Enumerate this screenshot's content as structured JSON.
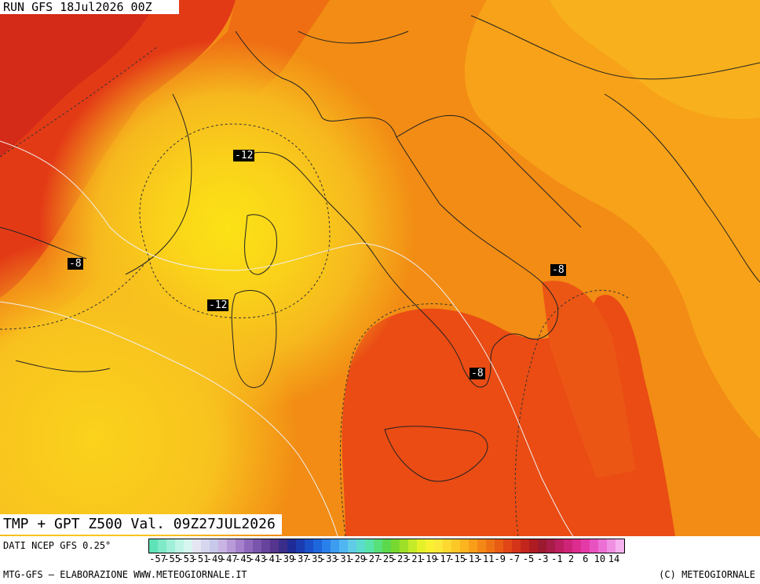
{
  "header": {
    "run_label": "RUN GFS 18Jul2026 00Z"
  },
  "footer": {
    "valid_label": "TMP + GPT Z500 Val. 09Z27JUL2026",
    "source": "DATI NCEP GFS 0.25°",
    "credit_left": "MTG-GFS — ELABORAZIONE WWW.METEOGIORNALE.IT",
    "credit_right": "(C) METEOGIORNALE"
  },
  "isotherm_labels": [
    {
      "text": "-12"
    },
    {
      "text": "-8"
    },
    {
      "text": "-12"
    },
    {
      "text": "-8"
    },
    {
      "text": "-8"
    }
  ],
  "legend": {
    "ticks": [
      "-57",
      "-55",
      "-53",
      "-51",
      "-49",
      "-47",
      "-45",
      "-43",
      "-41",
      "-39",
      "-37",
      "-35",
      "-33",
      "-31",
      "-29",
      "-27",
      "-25",
      "-23",
      "-21",
      "-19",
      "-17",
      "-15",
      "-13",
      "-11",
      "-9",
      "-7",
      "-5",
      "-3",
      "-1",
      "2",
      "6",
      "10",
      "14"
    ],
    "colors": [
      "#5ee3b8",
      "#7fe9c8",
      "#a0efd8",
      "#bff4e6",
      "#d8f6f0",
      "#e6e6f2",
      "#d6d6ee",
      "#c8c8ea",
      "#c9b4e4",
      "#b89ad8",
      "#a580cc",
      "#8f68bc",
      "#7a55ac",
      "#66449c",
      "#55358e",
      "#3b2d8a",
      "#1f2b96",
      "#1a3cb0",
      "#1a50c8",
      "#1e66dc",
      "#2a80ea",
      "#3c9cf0",
      "#50b6f2",
      "#60cce6",
      "#5cdccc",
      "#58e4a8",
      "#58e07a",
      "#5cd84c",
      "#78d830",
      "#9ee028",
      "#c4ea28",
      "#e4f028",
      "#f8f030",
      "#fce838",
      "#fcd830",
      "#fcc828",
      "#fcb420",
      "#fa9e1a",
      "#f48816",
      "#ee7214",
      "#e85c14",
      "#e04616",
      "#d43418",
      "#c2261c",
      "#ae1c22",
      "#9c1a30",
      "#a81c48",
      "#bc1e60",
      "#ce2478",
      "#dc2c90",
      "#e43aa8",
      "#e852c0",
      "#ec70d4",
      "#f090e2",
      "#f6b2ee"
    ]
  }
}
